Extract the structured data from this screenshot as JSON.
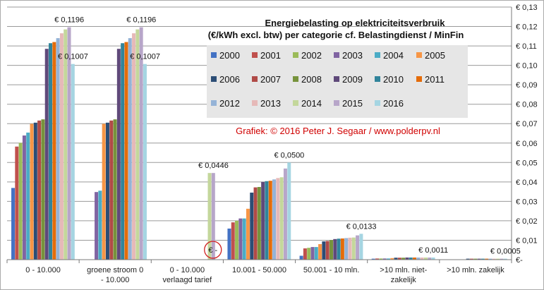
{
  "chart_data": {
    "type": "bar",
    "title_lines": [
      "Energiebelasting op elektriciteitsverbruik",
      "(€/kWh excl. btw) per categorie cf. Belastingdienst / MinFin"
    ],
    "credit": "Grafiek:  © 2016  Peter J. Segaar / www.polderpv.nl",
    "categories": [
      [
        "0 - 10.000"
      ],
      [
        "groene stroom 0",
        "- 10.000"
      ],
      [
        "0 - 10.000",
        "verlaagd tarief"
      ],
      [
        "10.001 - 50.000"
      ],
      [
        "50.001 - 10 mln."
      ],
      [
        ">10 mln. niet-",
        "zakelijk"
      ],
      [
        ">10 mln. zakelijk"
      ]
    ],
    "ylim": [
      0,
      0.13
    ],
    "yticks": [
      "€-",
      "€ 0,01",
      "€ 0,02",
      "€ 0,03",
      "€ 0,04",
      "€ 0,05",
      "€ 0,06",
      "€ 0,07",
      "€ 0,08",
      "€ 0,09",
      "€ 0,10",
      "€ 0,11",
      "€ 0,12",
      "€ 0,13"
    ],
    "grid": true,
    "legend_position": "top-right",
    "series": [
      {
        "name": "2000",
        "color": "#4472C4",
        "values": [
          0.0369,
          0.0,
          0.0,
          0.016,
          0.002,
          0.0005,
          0.0001
        ]
      },
      {
        "name": "2001",
        "color": "#C0504D",
        "values": [
          0.0582,
          0.0,
          0.0,
          0.0192,
          0.0058,
          0.0006,
          0.0001
        ]
      },
      {
        "name": "2002",
        "color": "#9BBB59",
        "values": [
          0.0601,
          0.0,
          0.0,
          0.02,
          0.0061,
          0.0006,
          0.0001
        ]
      },
      {
        "name": "2003",
        "color": "#8064A2",
        "values": [
          0.0639,
          0.0348,
          0.0,
          0.0212,
          0.0065,
          0.0006,
          0.0001
        ]
      },
      {
        "name": "2004",
        "color": "#4BACC6",
        "values": [
          0.0654,
          0.0355,
          0.0,
          0.0212,
          0.0065,
          0.0006,
          0.0001
        ]
      },
      {
        "name": "2005",
        "color": "#F79646",
        "values": [
          0.0699,
          0.0699,
          0.0,
          0.0262,
          0.008,
          0.0008,
          0.0001
        ]
      },
      {
        "name": "2006",
        "color": "#2C4D75",
        "values": [
          0.0705,
          0.0705,
          0.0,
          0.0345,
          0.0094,
          0.001,
          0.0005
        ]
      },
      {
        "name": "2007",
        "color": "#B04A47",
        "values": [
          0.0716,
          0.0716,
          0.0,
          0.0372,
          0.0096,
          0.001,
          0.0005
        ]
      },
      {
        "name": "2008",
        "color": "#77933C",
        "values": [
          0.0722,
          0.0722,
          0.0,
          0.0374,
          0.0101,
          0.001,
          0.0005
        ]
      },
      {
        "name": "2009",
        "color": "#5F497A",
        "values": [
          0.1085,
          0.1085,
          0.0,
          0.04,
          0.0106,
          0.0011,
          0.0005
        ]
      },
      {
        "name": "2010",
        "color": "#31849B",
        "values": [
          0.1114,
          0.1114,
          0.0,
          0.0404,
          0.0108,
          0.0011,
          0.0005
        ]
      },
      {
        "name": "2011",
        "color": "#E46C0A",
        "values": [
          0.112,
          0.112,
          0.0,
          0.0406,
          0.0109,
          0.0011,
          0.0005
        ]
      },
      {
        "name": "2012",
        "color": "#95B3D7",
        "values": [
          0.114,
          0.114,
          0.0,
          0.0413,
          0.0111,
          0.0011,
          0.0005
        ]
      },
      {
        "name": "2013",
        "color": "#E6B9B8",
        "values": [
          0.1165,
          0.1165,
          0.0,
          0.042,
          0.0113,
          0.0011,
          0.0005
        ]
      },
      {
        "name": "2014",
        "color": "#C4D79B",
        "values": [
          0.1185,
          0.1185,
          0.0446,
          0.0424,
          0.0114,
          0.0011,
          0.0005
        ]
      },
      {
        "name": "2015",
        "color": "#B7A6C9",
        "values": [
          0.1196,
          0.1196,
          0.0446,
          0.0469,
          0.0125,
          0.0011,
          0.0005
        ]
      },
      {
        "name": "2016",
        "color": "#A5D5E2",
        "values": [
          0.1007,
          0.1007,
          0.0,
          0.05,
          0.0133,
          0.0011,
          0.0005
        ]
      }
    ],
    "annotations": [
      {
        "text": "€ 0,1196",
        "group": 0,
        "series": 15,
        "value": 0.1196
      },
      {
        "text": "€ 0,1007",
        "group": 0,
        "series": 16,
        "value": 0.1007
      },
      {
        "text": "€ 0,1196",
        "group": 1,
        "series": 15,
        "value": 0.1196
      },
      {
        "text": "€ 0,1007",
        "group": 1,
        "series": 16,
        "value": 0.1007
      },
      {
        "text": "€ 0,0446",
        "group": 2,
        "series": 15,
        "value": 0.0446
      },
      {
        "text": "€ -",
        "group": 2,
        "series": 16,
        "value": 0.0,
        "circled": true
      },
      {
        "text": "€ 0,0500",
        "group": 3,
        "series": 16,
        "value": 0.05
      },
      {
        "text": "€ 0,0133",
        "group": 4,
        "series": 16,
        "value": 0.0133
      },
      {
        "text": "€ 0,0011",
        "group": 5,
        "series": 16,
        "value": 0.0011
      },
      {
        "text": "€ 0,0005",
        "group": 6,
        "series": 16,
        "value": 0.0005
      }
    ],
    "colors": {
      "grid": "#9a9a9a",
      "axis": "#7a7a7a",
      "plot_bg": "#ffffff",
      "legend_bg": "#e6e6e6",
      "credit": "#d00000",
      "circle": "#d02020"
    }
  }
}
